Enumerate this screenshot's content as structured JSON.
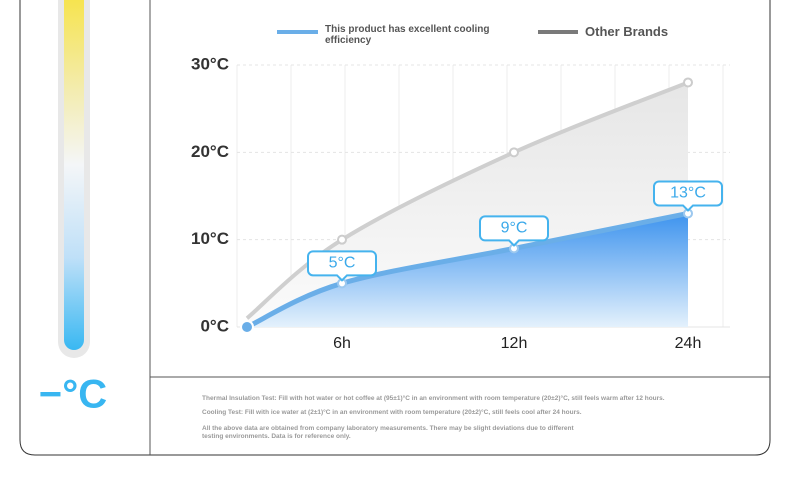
{
  "chart_data": {
    "type": "line",
    "categories": [
      null,
      "6h",
      "12h",
      "24h"
    ],
    "series": [
      {
        "name": "This product has excellent cooling efficiency",
        "color": "#6aaee8",
        "values": [
          0,
          5,
          9,
          13
        ],
        "value_labels": [
          null,
          "5°C",
          "9°C",
          "13°C"
        ]
      },
      {
        "name": "Other Brands",
        "color": "#7a7a7a",
        "values": [
          1,
          10,
          20,
          28
        ]
      }
    ],
    "ylim": [
      0,
      30
    ],
    "yticks": [
      {
        "value": 0,
        "label": "0°C"
      },
      {
        "value": 10,
        "label": "10°C"
      },
      {
        "value": 20,
        "label": "20°C"
      },
      {
        "value": 30,
        "label": "30°C"
      }
    ],
    "grid": true
  },
  "badge": "−°C",
  "notes": [
    "Thermal Insulation Test: Fill with hot water or hot coffee at (95±1)°C in an environment with room temperature (20±2)°C, still feels warm after 12 hours.",
    "Cooling Test: Fill with ice water at (2±1)°C in an environment with room temperature (20±2)°C, still feels cool after 24 hours.",
    "All the above data are obtained from company laboratory measurements. There may be slight deviations due to different testing environments. Data is for reference only."
  ]
}
